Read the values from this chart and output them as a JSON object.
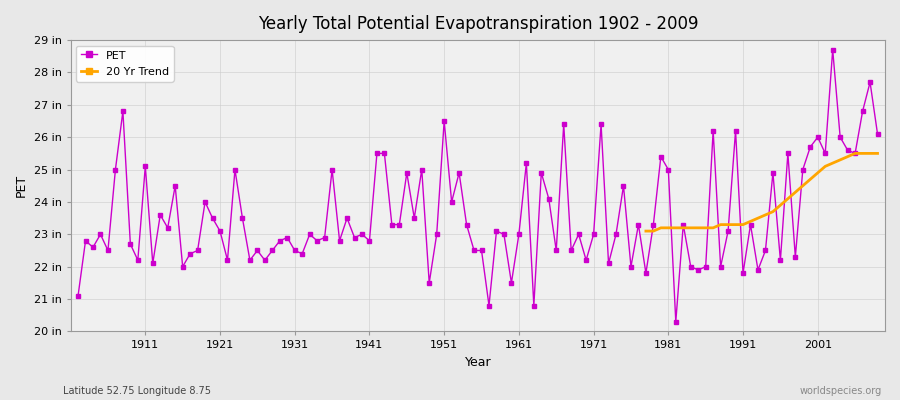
{
  "title": "Yearly Total Potential Evapotranspiration 1902 - 2009",
  "xlabel": "Year",
  "ylabel": "PET",
  "lat_lon_label": "Latitude 52.75 Longitude 8.75",
  "watermark": "worldspecies.org",
  "bg_color": "#e8e8e8",
  "plot_bg_color": "#f0f0f0",
  "pet_color": "#cc00cc",
  "trend_color": "#ffa500",
  "ylim": [
    20,
    29
  ],
  "ytick_labels": [
    "20 in",
    "21 in",
    "22 in",
    "23 in",
    "24 in",
    "25 in",
    "26 in",
    "27 in",
    "28 in",
    "29 in"
  ],
  "ytick_values": [
    20,
    21,
    22,
    23,
    24,
    25,
    26,
    27,
    28,
    29
  ],
  "xtick_values": [
    1911,
    1921,
    1931,
    1941,
    1951,
    1961,
    1971,
    1981,
    1991,
    2001
  ],
  "years": [
    1902,
    1903,
    1904,
    1905,
    1906,
    1907,
    1908,
    1909,
    1910,
    1911,
    1912,
    1913,
    1914,
    1915,
    1916,
    1917,
    1918,
    1919,
    1920,
    1921,
    1922,
    1923,
    1924,
    1925,
    1926,
    1927,
    1928,
    1929,
    1930,
    1931,
    1932,
    1933,
    1934,
    1935,
    1936,
    1937,
    1938,
    1939,
    1940,
    1941,
    1942,
    1943,
    1944,
    1945,
    1946,
    1947,
    1948,
    1949,
    1950,
    1951,
    1952,
    1953,
    1954,
    1955,
    1956,
    1957,
    1958,
    1959,
    1960,
    1961,
    1962,
    1963,
    1964,
    1965,
    1966,
    1967,
    1968,
    1969,
    1970,
    1971,
    1972,
    1973,
    1974,
    1975,
    1976,
    1977,
    1978,
    1979,
    1980,
    1981,
    1982,
    1983,
    1984,
    1985,
    1986,
    1987,
    1988,
    1989,
    1990,
    1991,
    1992,
    1993,
    1994,
    1995,
    1996,
    1997,
    1998,
    1999,
    2000,
    2001,
    2002,
    2003,
    2004,
    2005,
    2006,
    2007,
    2008,
    2009
  ],
  "pet_values": [
    21.1,
    22.8,
    22.6,
    23.0,
    22.5,
    25.0,
    26.8,
    22.7,
    22.2,
    25.1,
    22.1,
    23.6,
    23.2,
    24.5,
    22.0,
    22.4,
    22.5,
    24.0,
    23.5,
    23.1,
    22.2,
    25.0,
    23.5,
    22.2,
    22.5,
    22.2,
    22.5,
    22.8,
    22.9,
    22.5,
    22.4,
    23.0,
    22.8,
    22.9,
    25.0,
    22.8,
    23.5,
    22.9,
    23.0,
    22.8,
    25.5,
    25.5,
    23.3,
    23.3,
    24.9,
    23.5,
    25.0,
    21.5,
    23.0,
    26.5,
    24.0,
    24.9,
    23.3,
    22.5,
    22.5,
    20.8,
    23.1,
    23.0,
    21.5,
    23.0,
    25.2,
    20.8,
    24.9,
    24.1,
    22.5,
    26.4,
    22.5,
    23.0,
    22.2,
    23.0,
    26.4,
    22.1,
    23.0,
    24.5,
    22.0,
    23.3,
    21.8,
    23.3,
    25.4,
    25.0,
    20.3,
    23.3,
    22.0,
    21.9,
    22.0,
    26.2,
    22.0,
    23.1,
    26.2,
    21.8,
    23.3,
    21.9,
    22.5,
    24.9,
    22.2,
    25.5,
    22.3,
    25.0,
    25.7,
    26.0,
    25.5,
    28.7,
    26.0,
    25.6,
    25.5,
    26.8,
    27.7,
    26.1
  ],
  "trend_years": [
    1978,
    1979,
    1980,
    1981,
    1982,
    1983,
    1984,
    1985,
    1986,
    1987,
    1988,
    1989,
    1990,
    1991,
    1992,
    1993,
    1994,
    1995,
    1996,
    1997,
    1998,
    1999,
    2000,
    2001,
    2002,
    2003,
    2004,
    2005,
    2006,
    2007,
    2008,
    2009
  ],
  "trend_values": [
    23.1,
    23.1,
    23.2,
    23.2,
    23.2,
    23.2,
    23.2,
    23.2,
    23.2,
    23.2,
    23.3,
    23.3,
    23.3,
    23.3,
    23.4,
    23.5,
    23.6,
    23.7,
    23.9,
    24.1,
    24.3,
    24.5,
    24.7,
    24.9,
    25.1,
    25.2,
    25.3,
    25.4,
    25.5,
    25.5,
    25.5,
    25.5
  ]
}
